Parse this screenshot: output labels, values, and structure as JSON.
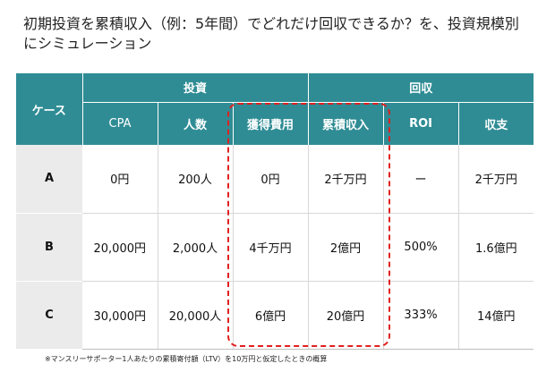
{
  "title": {
    "line1": "初期投資を累積収入（例：5年間）でどれだけ回収できるか？を、投資規模別",
    "line2": "にシミュレーション"
  },
  "table": {
    "case_header": "ケース",
    "group_investment": "投資",
    "group_return": "回収",
    "columns": [
      "CPA",
      "人数",
      "獲得費用",
      "累積収入",
      "ROI",
      "収支"
    ],
    "rows": [
      {
        "case": "A",
        "cpa": "0円",
        "people": "200人",
        "acquisition_cost": "0円",
        "cumulative_revenue": "2千万円",
        "roi": "ー",
        "balance": "2千万円"
      },
      {
        "case": "B",
        "cpa": "20,000円",
        "people": "2,000人",
        "acquisition_cost": "4千万円",
        "cumulative_revenue": "2億円",
        "roi": "500%",
        "balance": "1.6億円"
      },
      {
        "case": "C",
        "cpa": "30,000円",
        "people": "20,000人",
        "acquisition_cost": "6億円",
        "cumulative_revenue": "20億円",
        "roi": "333%",
        "balance": "14億円"
      }
    ]
  },
  "colors": {
    "header_bg": "#2f8c94",
    "case_bg": "#ebebeb",
    "highlight_border": "#e02020"
  },
  "footnote": "※マンスリーサポーター1人あたりの累積寄付額（LTV）を10万円と仮定したときの概算"
}
